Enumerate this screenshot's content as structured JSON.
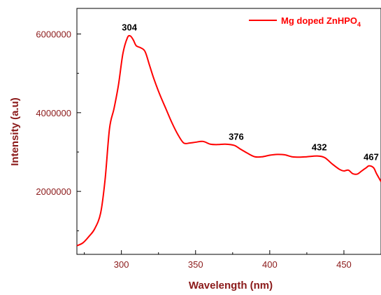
{
  "chart_data": {
    "type": "line",
    "title": "",
    "xlabel": "Wavelength (nm)",
    "ylabel": "Intensity (a.u)",
    "xlim": [
      270,
      475
    ],
    "ylim": [
      400000,
      6650000
    ],
    "x_ticks": [
      300,
      350,
      400,
      450
    ],
    "y_ticks": [
      2000000,
      4000000,
      6000000
    ],
    "x_tick_labels": [
      "300",
      "350",
      "400",
      "450"
    ],
    "y_tick_labels": [
      "2000000",
      "4000000",
      "6000000"
    ],
    "legend": {
      "position": "top-right"
    },
    "series": [
      {
        "name": "Mg doped ZnHPO",
        "name_subscript": "4",
        "color": "#ff0000",
        "x": [
          270,
          274,
          278,
          282,
          286,
          289,
          292,
          295,
          298,
          301,
          304,
          306,
          308,
          310,
          313,
          316,
          319,
          322,
          326,
          330,
          334,
          338,
          342,
          346,
          350,
          355,
          360,
          365,
          370,
          376,
          380,
          385,
          390,
          395,
          400,
          405,
          410,
          415,
          420,
          425,
          432,
          437,
          442,
          447,
          450,
          453,
          456,
          459,
          462,
          465,
          467,
          470,
          472,
          475
        ],
        "y": [
          620000,
          690000,
          850000,
          1050000,
          1450000,
          2300000,
          3600000,
          4100000,
          4700000,
          5500000,
          5900000,
          5950000,
          5850000,
          5700000,
          5650000,
          5550000,
          5200000,
          4850000,
          4450000,
          4100000,
          3750000,
          3450000,
          3230000,
          3230000,
          3250000,
          3270000,
          3200000,
          3190000,
          3200000,
          3170000,
          3080000,
          2970000,
          2880000,
          2880000,
          2920000,
          2940000,
          2930000,
          2880000,
          2870000,
          2880000,
          2900000,
          2860000,
          2700000,
          2560000,
          2520000,
          2540000,
          2450000,
          2440000,
          2520000,
          2600000,
          2650000,
          2600000,
          2450000,
          2250000
        ]
      }
    ],
    "annotations": [
      {
        "text": "304",
        "x": 304,
        "y": 5950000
      },
      {
        "text": "376",
        "x": 376,
        "y": 3170000
      },
      {
        "text": "432",
        "x": 432,
        "y": 2900000
      },
      {
        "text": "467",
        "x": 467,
        "y": 2650000
      }
    ]
  }
}
